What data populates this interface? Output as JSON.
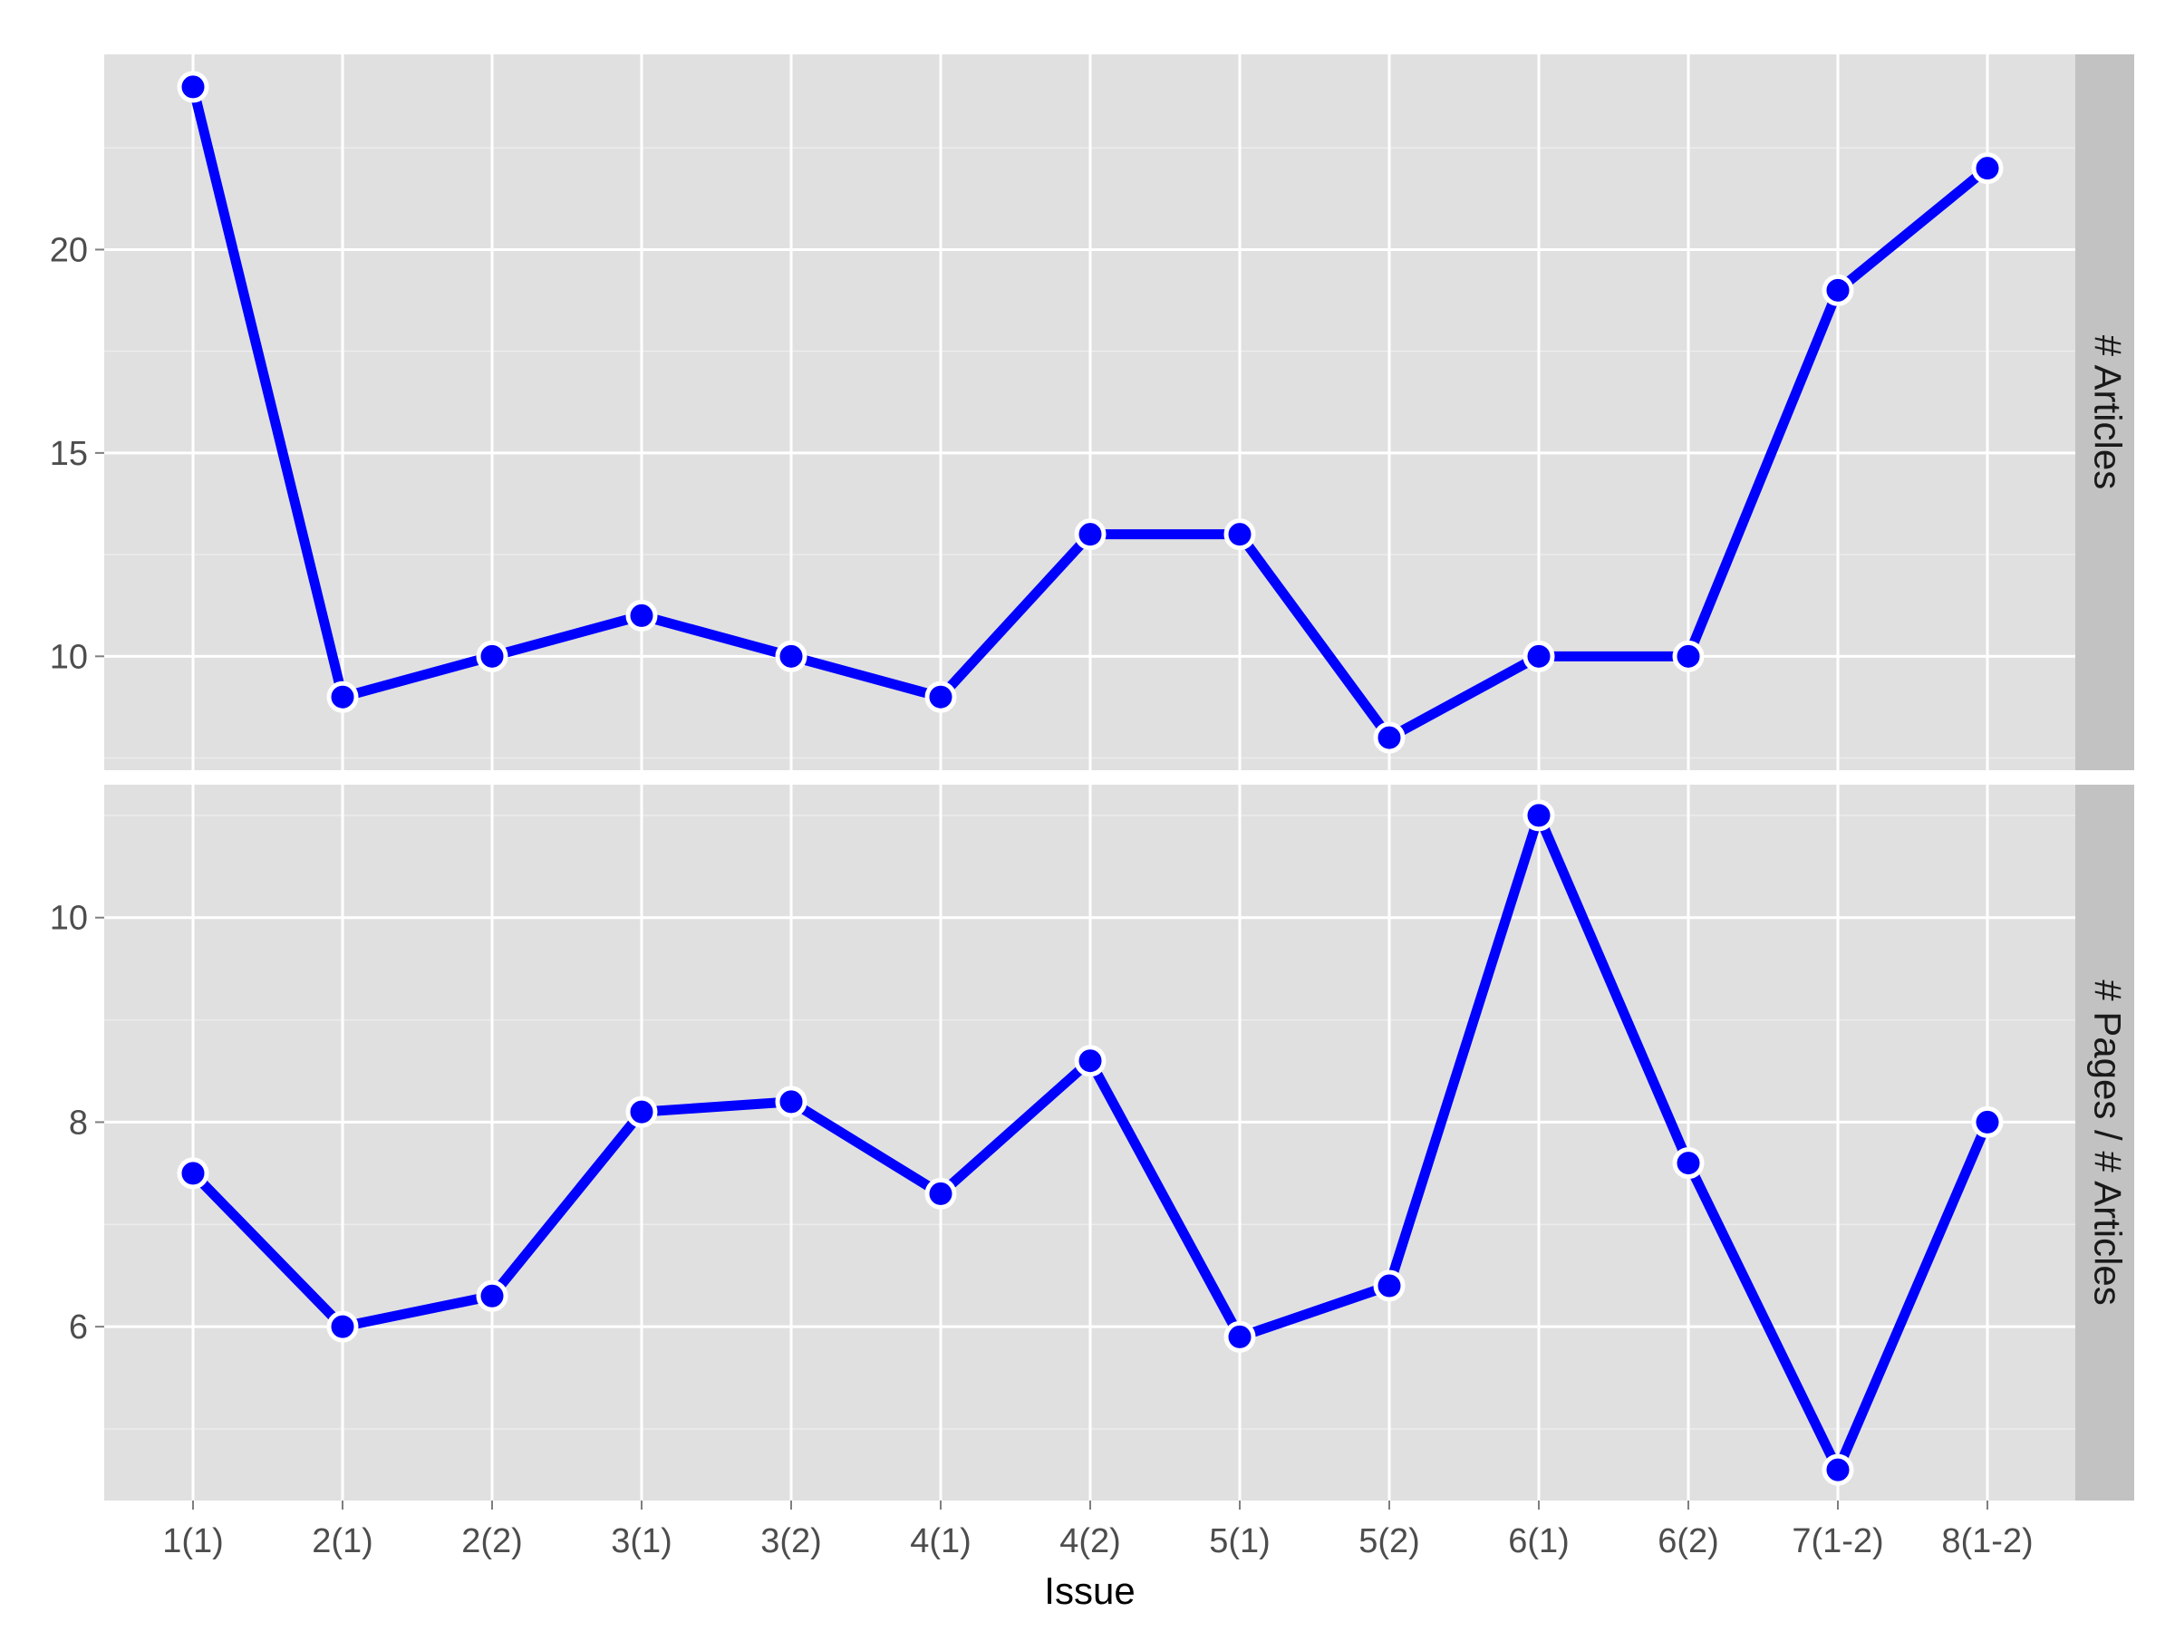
{
  "chart_data": {
    "type": "line",
    "xlabel": "Issue",
    "categories": [
      "1(1)",
      "2(1)",
      "2(2)",
      "3(1)",
      "3(2)",
      "4(1)",
      "4(2)",
      "5(1)",
      "5(2)",
      "6(1)",
      "6(2)",
      "7(1-2)",
      "8(1-2)"
    ],
    "grid": true,
    "colors": {
      "series": "#0000ff",
      "panel": "#e0e0e0",
      "strip": "#c2c2c2"
    },
    "panels": [
      {
        "strip_label": "# Articles",
        "ylim": [
          7.2,
          24.8
        ],
        "yticks": [
          10,
          15,
          20
        ],
        "yminor": [
          7.5,
          12.5,
          17.5,
          22.5
        ],
        "values": [
          24,
          9,
          10,
          11,
          10,
          9,
          13,
          13,
          8,
          10,
          10,
          19,
          22
        ]
      },
      {
        "strip_label": "# Pages / # Articles",
        "ylim": [
          4.3,
          11.3
        ],
        "yticks": [
          6,
          8,
          10
        ],
        "yminor": [
          5,
          7,
          9,
          11
        ],
        "values": [
          7.5,
          6.0,
          6.3,
          8.1,
          8.2,
          7.3,
          8.6,
          5.9,
          6.4,
          11.0,
          7.6,
          4.6,
          8.0
        ]
      }
    ]
  }
}
